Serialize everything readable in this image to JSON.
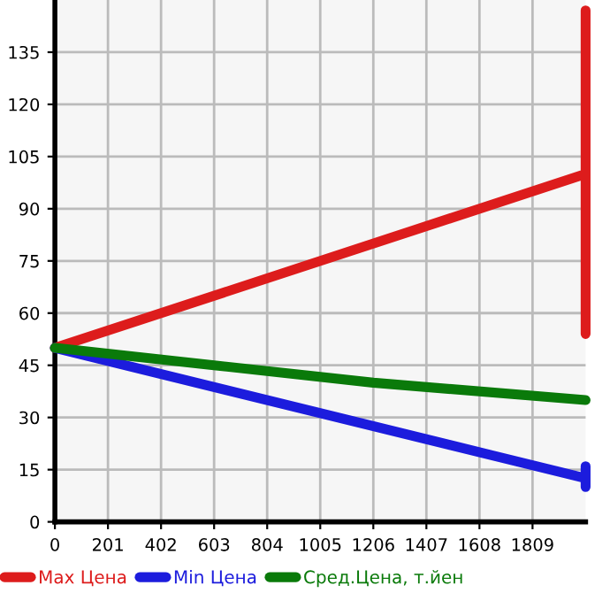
{
  "chart_data": {
    "type": "line",
    "xlim": [
      0,
      2010
    ],
    "ylim": [
      0,
      150
    ],
    "xticks": [
      0,
      201,
      402,
      603,
      804,
      1005,
      1206,
      1407,
      1608,
      1809
    ],
    "yticks": [
      0,
      15,
      30,
      45,
      60,
      75,
      90,
      105,
      120,
      135
    ],
    "grid": true,
    "legend": "bottom",
    "marker": "none",
    "line_style": "solid",
    "series": [
      {
        "name": "Max Цена",
        "color": "#dd1c1c",
        "x": [
          0,
          2010,
          2010,
          2010
        ],
        "values": [
          50,
          100,
          147,
          54
        ]
      },
      {
        "name": "Min Цена",
        "color": "#1c1cdd",
        "x": [
          0,
          2010,
          2010,
          2010
        ],
        "values": [
          50,
          12.5,
          16,
          10
        ]
      },
      {
        "name": "Сред.Цена, т.йен",
        "color": "#0a7a0a",
        "x": [
          0,
          603,
          1206,
          2010
        ],
        "values": [
          50,
          45,
          40,
          35
        ]
      }
    ]
  }
}
